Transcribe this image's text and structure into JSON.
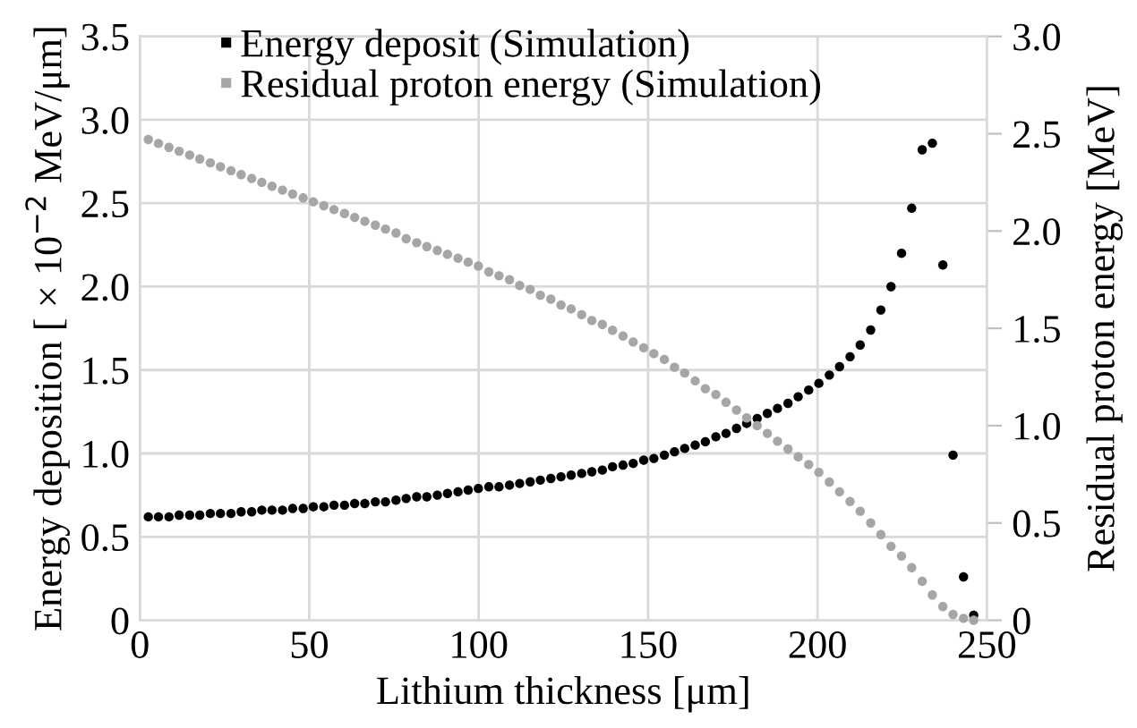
{
  "chart_data": {
    "type": "scatter",
    "xlabel": "Lithium thickness [μm]",
    "ylabel": "Energy deposition [ × 10$^{−2}$ MeV/μm]",
    "y2label": "Residual proton energy [MeV]",
    "x": [
      2.5,
      5.5,
      8.6,
      11.6,
      14.7,
      17.7,
      20.8,
      23.8,
      26.9,
      29.9,
      33.0,
      36.0,
      39.0,
      42.1,
      45.1,
      48.2,
      51.2,
      54.3,
      57.3,
      60.4,
      63.4,
      66.4,
      69.5,
      72.5,
      75.6,
      78.6,
      81.7,
      84.7,
      87.8,
      90.8,
      93.9,
      96.9,
      99.9,
      103.0,
      106.0,
      109.1,
      112.1,
      115.2,
      118.2,
      121.3,
      124.3,
      127.3,
      130.4,
      133.4,
      136.5,
      139.5,
      142.6,
      145.6,
      148.7,
      151.7,
      154.8,
      157.8,
      160.8,
      163.9,
      166.9,
      170.0,
      173.0,
      176.1,
      179.1,
      182.2,
      185.2,
      188.2,
      191.3,
      194.3,
      197.4,
      200.4,
      203.5,
      206.5,
      209.6,
      212.6,
      215.7,
      218.7,
      221.7,
      224.8,
      227.8,
      230.9,
      233.9,
      237.0,
      240.0,
      243.1,
      246.1
    ],
    "series": [
      {
        "name": "Energy deposit (Simulation)",
        "color": "#000000",
        "values": [
          0.62,
          0.62,
          0.62,
          0.63,
          0.63,
          0.63,
          0.64,
          0.64,
          0.64,
          0.65,
          0.65,
          0.66,
          0.66,
          0.66,
          0.67,
          0.67,
          0.68,
          0.68,
          0.69,
          0.69,
          0.7,
          0.7,
          0.71,
          0.71,
          0.72,
          0.73,
          0.74,
          0.74,
          0.75,
          0.76,
          0.77,
          0.78,
          0.79,
          0.8,
          0.8,
          0.81,
          0.82,
          0.83,
          0.84,
          0.85,
          0.86,
          0.87,
          0.88,
          0.89,
          0.9,
          0.92,
          0.93,
          0.94,
          0.96,
          0.97,
          0.99,
          1.01,
          1.03,
          1.05,
          1.07,
          1.1,
          1.12,
          1.15,
          1.18,
          1.21,
          1.24,
          1.27,
          1.3,
          1.34,
          1.38,
          1.42,
          1.47,
          1.52,
          1.58,
          1.65,
          1.74,
          1.86,
          2.0,
          2.2,
          2.47,
          2.82,
          2.86,
          2.13,
          0.99,
          0.26,
          0.03
        ]
      },
      {
        "name": "Residual proton energy (Simulation)",
        "color": "#a6a6a6",
        "axis": "y2",
        "values": [
          2.47,
          2.45,
          2.43,
          2.41,
          2.39,
          2.37,
          2.35,
          2.33,
          2.31,
          2.29,
          2.27,
          2.25,
          2.23,
          2.21,
          2.19,
          2.17,
          2.15,
          2.13,
          2.11,
          2.09,
          2.07,
          2.05,
          2.03,
          2.01,
          1.99,
          1.96,
          1.94,
          1.92,
          1.9,
          1.88,
          1.86,
          1.84,
          1.82,
          1.79,
          1.77,
          1.75,
          1.72,
          1.7,
          1.67,
          1.65,
          1.62,
          1.6,
          1.57,
          1.54,
          1.52,
          1.49,
          1.46,
          1.43,
          1.4,
          1.37,
          1.34,
          1.3,
          1.27,
          1.23,
          1.19,
          1.16,
          1.12,
          1.08,
          1.04,
          1.0,
          0.96,
          0.92,
          0.88,
          0.84,
          0.8,
          0.76,
          0.71,
          0.66,
          0.61,
          0.56,
          0.5,
          0.44,
          0.38,
          0.33,
          0.27,
          0.2,
          0.13,
          0.07,
          0.03,
          0.01,
          0
        ]
      }
    ],
    "xlim": [
      0,
      250
    ],
    "xticks": [
      0,
      50,
      100,
      150,
      200,
      250
    ],
    "ylim": [
      0,
      3.5
    ],
    "yticks": [
      0,
      {
        "value": 0.5,
        "label": "0.5"
      },
      {
        "value": 1,
        "label": "1.0"
      },
      {
        "value": 1.5,
        "label": "1.5"
      },
      {
        "value": 2,
        "label": "2.0"
      },
      {
        "value": 2.5,
        "label": "2.5"
      },
      {
        "value": 3,
        "label": "3.0"
      },
      {
        "value": 3.5,
        "label": "3.5"
      }
    ],
    "y2lim": [
      0,
      3
    ],
    "y2ticks": [
      0,
      {
        "value": 0.5,
        "label": "0.5"
      },
      {
        "value": 1,
        "label": "1.0"
      },
      {
        "value": 1.5,
        "label": "1.5"
      },
      {
        "value": 2,
        "label": "2.0"
      },
      {
        "value": 2.5,
        "label": "2.5"
      },
      {
        "value": 3,
        "label": "3.0"
      }
    ],
    "grid": true,
    "legend": "top",
    "marker": "circle"
  }
}
